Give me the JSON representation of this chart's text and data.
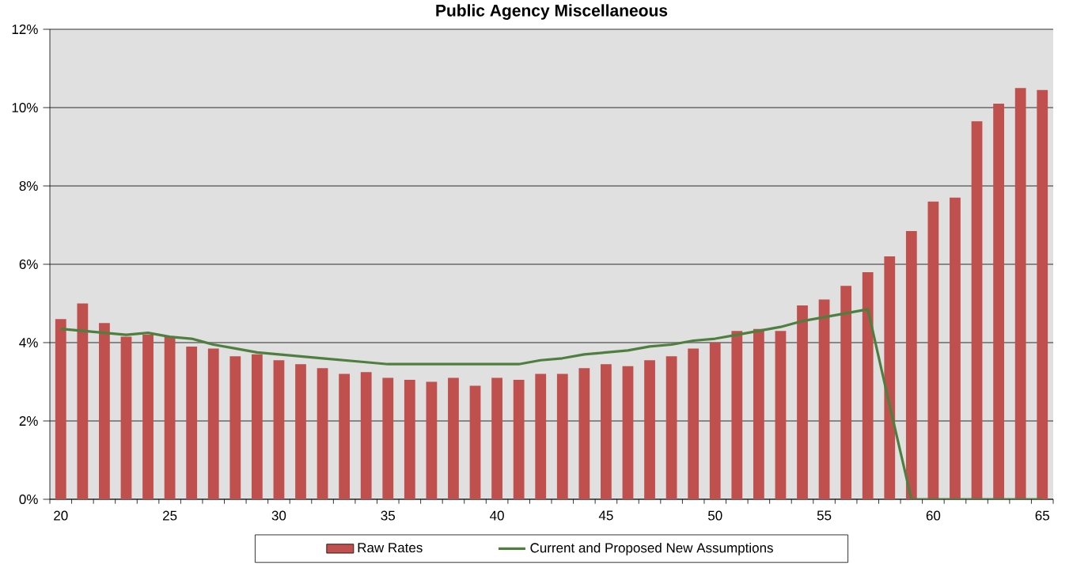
{
  "chart_data": {
    "type": "bar",
    "title": "Public Agency Miscellaneous",
    "categories": [
      "20",
      null,
      null,
      null,
      null,
      "25",
      null,
      null,
      null,
      null,
      "30",
      null,
      null,
      null,
      null,
      "35",
      null,
      null,
      null,
      null,
      "40",
      null,
      null,
      null,
      null,
      "45",
      null,
      null,
      null,
      null,
      "50",
      null,
      null,
      null,
      null,
      "55",
      null,
      null,
      null,
      null,
      "60",
      null,
      null,
      null,
      null,
      "65"
    ],
    "series": [
      {
        "name": "Raw Rates",
        "color": "#c0504d",
        "values": [
          4.6,
          5.0,
          4.5,
          4.15,
          4.2,
          4.15,
          3.9,
          3.85,
          3.65,
          3.7,
          3.55,
          3.45,
          3.35,
          3.2,
          3.25,
          3.1,
          3.05,
          3.0,
          3.1,
          2.9,
          3.1,
          3.05,
          3.2,
          3.2,
          3.35,
          3.45,
          3.4,
          3.55,
          3.65,
          3.85,
          4.0,
          4.3,
          4.35,
          4.3,
          4.95,
          5.1,
          5.45,
          5.8,
          6.2,
          6.85,
          7.6,
          7.7,
          9.65,
          10.1,
          10.5,
          10.45
        ]
      },
      {
        "name": "Current and Proposed New Assumptions",
        "type": "line",
        "color": "#4f7f3f",
        "values": [
          4.35,
          4.3,
          4.25,
          4.2,
          4.25,
          4.15,
          4.1,
          3.95,
          3.85,
          3.75,
          3.7,
          3.65,
          3.6,
          3.55,
          3.5,
          3.45,
          3.45,
          3.45,
          3.45,
          3.45,
          3.45,
          3.45,
          3.55,
          3.6,
          3.7,
          3.75,
          3.8,
          3.9,
          3.95,
          4.05,
          4.1,
          4.2,
          4.3,
          4.4,
          4.55,
          4.65,
          4.75,
          4.85,
          2.4,
          0,
          0,
          0,
          0,
          0,
          0,
          0
        ]
      }
    ],
    "ylim": [
      0,
      12
    ],
    "yticks": [
      {
        "value": 0,
        "label": "0%"
      },
      {
        "value": 2,
        "label": "2%"
      },
      {
        "value": 4,
        "label": "4%"
      },
      {
        "value": 6,
        "label": "6%"
      },
      {
        "value": 8,
        "label": "8%"
      },
      {
        "value": 10,
        "label": "10%"
      },
      {
        "value": 12,
        "label": "12%"
      }
    ],
    "grid": "y",
    "legend": "bottom"
  }
}
